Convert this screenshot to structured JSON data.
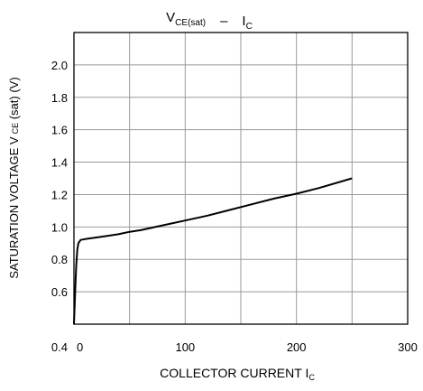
{
  "chart_data": {
    "type": "line",
    "title": {
      "parts": [
        {
          "text": "V",
          "sub": "CE(sat)"
        },
        {
          "text": "–"
        },
        {
          "text": "I",
          "sub": "C"
        }
      ]
    },
    "xlabel": {
      "main": "COLLECTOR CURRENT I",
      "sub": "C"
    },
    "ylabel": {
      "pre": "SATURATION VOLTAGE  V",
      "sub": "CE",
      "post": " (sat)  (V)"
    },
    "xlim": [
      0,
      300
    ],
    "ylim": [
      0.4,
      2.2
    ],
    "x_ticks": [
      {
        "value": 0,
        "label": "0"
      },
      {
        "value": 100,
        "label": "100"
      },
      {
        "value": 200,
        "label": "200"
      },
      {
        "value": 300,
        "label": "300"
      }
    ],
    "y_ticks": [
      {
        "value": 0.4,
        "label": "0.4"
      },
      {
        "value": 0.6,
        "label": "0.6"
      },
      {
        "value": 0.8,
        "label": "0.8"
      },
      {
        "value": 1.0,
        "label": "1.0"
      },
      {
        "value": 1.2,
        "label": "1.2"
      },
      {
        "value": 1.4,
        "label": "1.4"
      },
      {
        "value": 1.6,
        "label": "1.6"
      },
      {
        "value": 1.8,
        "label": "1.8"
      },
      {
        "value": 2.0,
        "label": "2.0"
      }
    ],
    "x_grid_step": 50,
    "y_grid_step": 0.2,
    "grid": true,
    "series": [
      {
        "color": "#000000",
        "points": [
          [
            0,
            0.4
          ],
          [
            1,
            0.58
          ],
          [
            2,
            0.76
          ],
          [
            3,
            0.86
          ],
          [
            4,
            0.9
          ],
          [
            6,
            0.92
          ],
          [
            10,
            0.925
          ],
          [
            20,
            0.935
          ],
          [
            30,
            0.945
          ],
          [
            40,
            0.955
          ],
          [
            50,
            0.97
          ],
          [
            60,
            0.98
          ],
          [
            80,
            1.01
          ],
          [
            100,
            1.04
          ],
          [
            120,
            1.07
          ],
          [
            140,
            1.105
          ],
          [
            160,
            1.14
          ],
          [
            180,
            1.175
          ],
          [
            200,
            1.205
          ],
          [
            220,
            1.24
          ],
          [
            250,
            1.3
          ]
        ]
      }
    ]
  }
}
